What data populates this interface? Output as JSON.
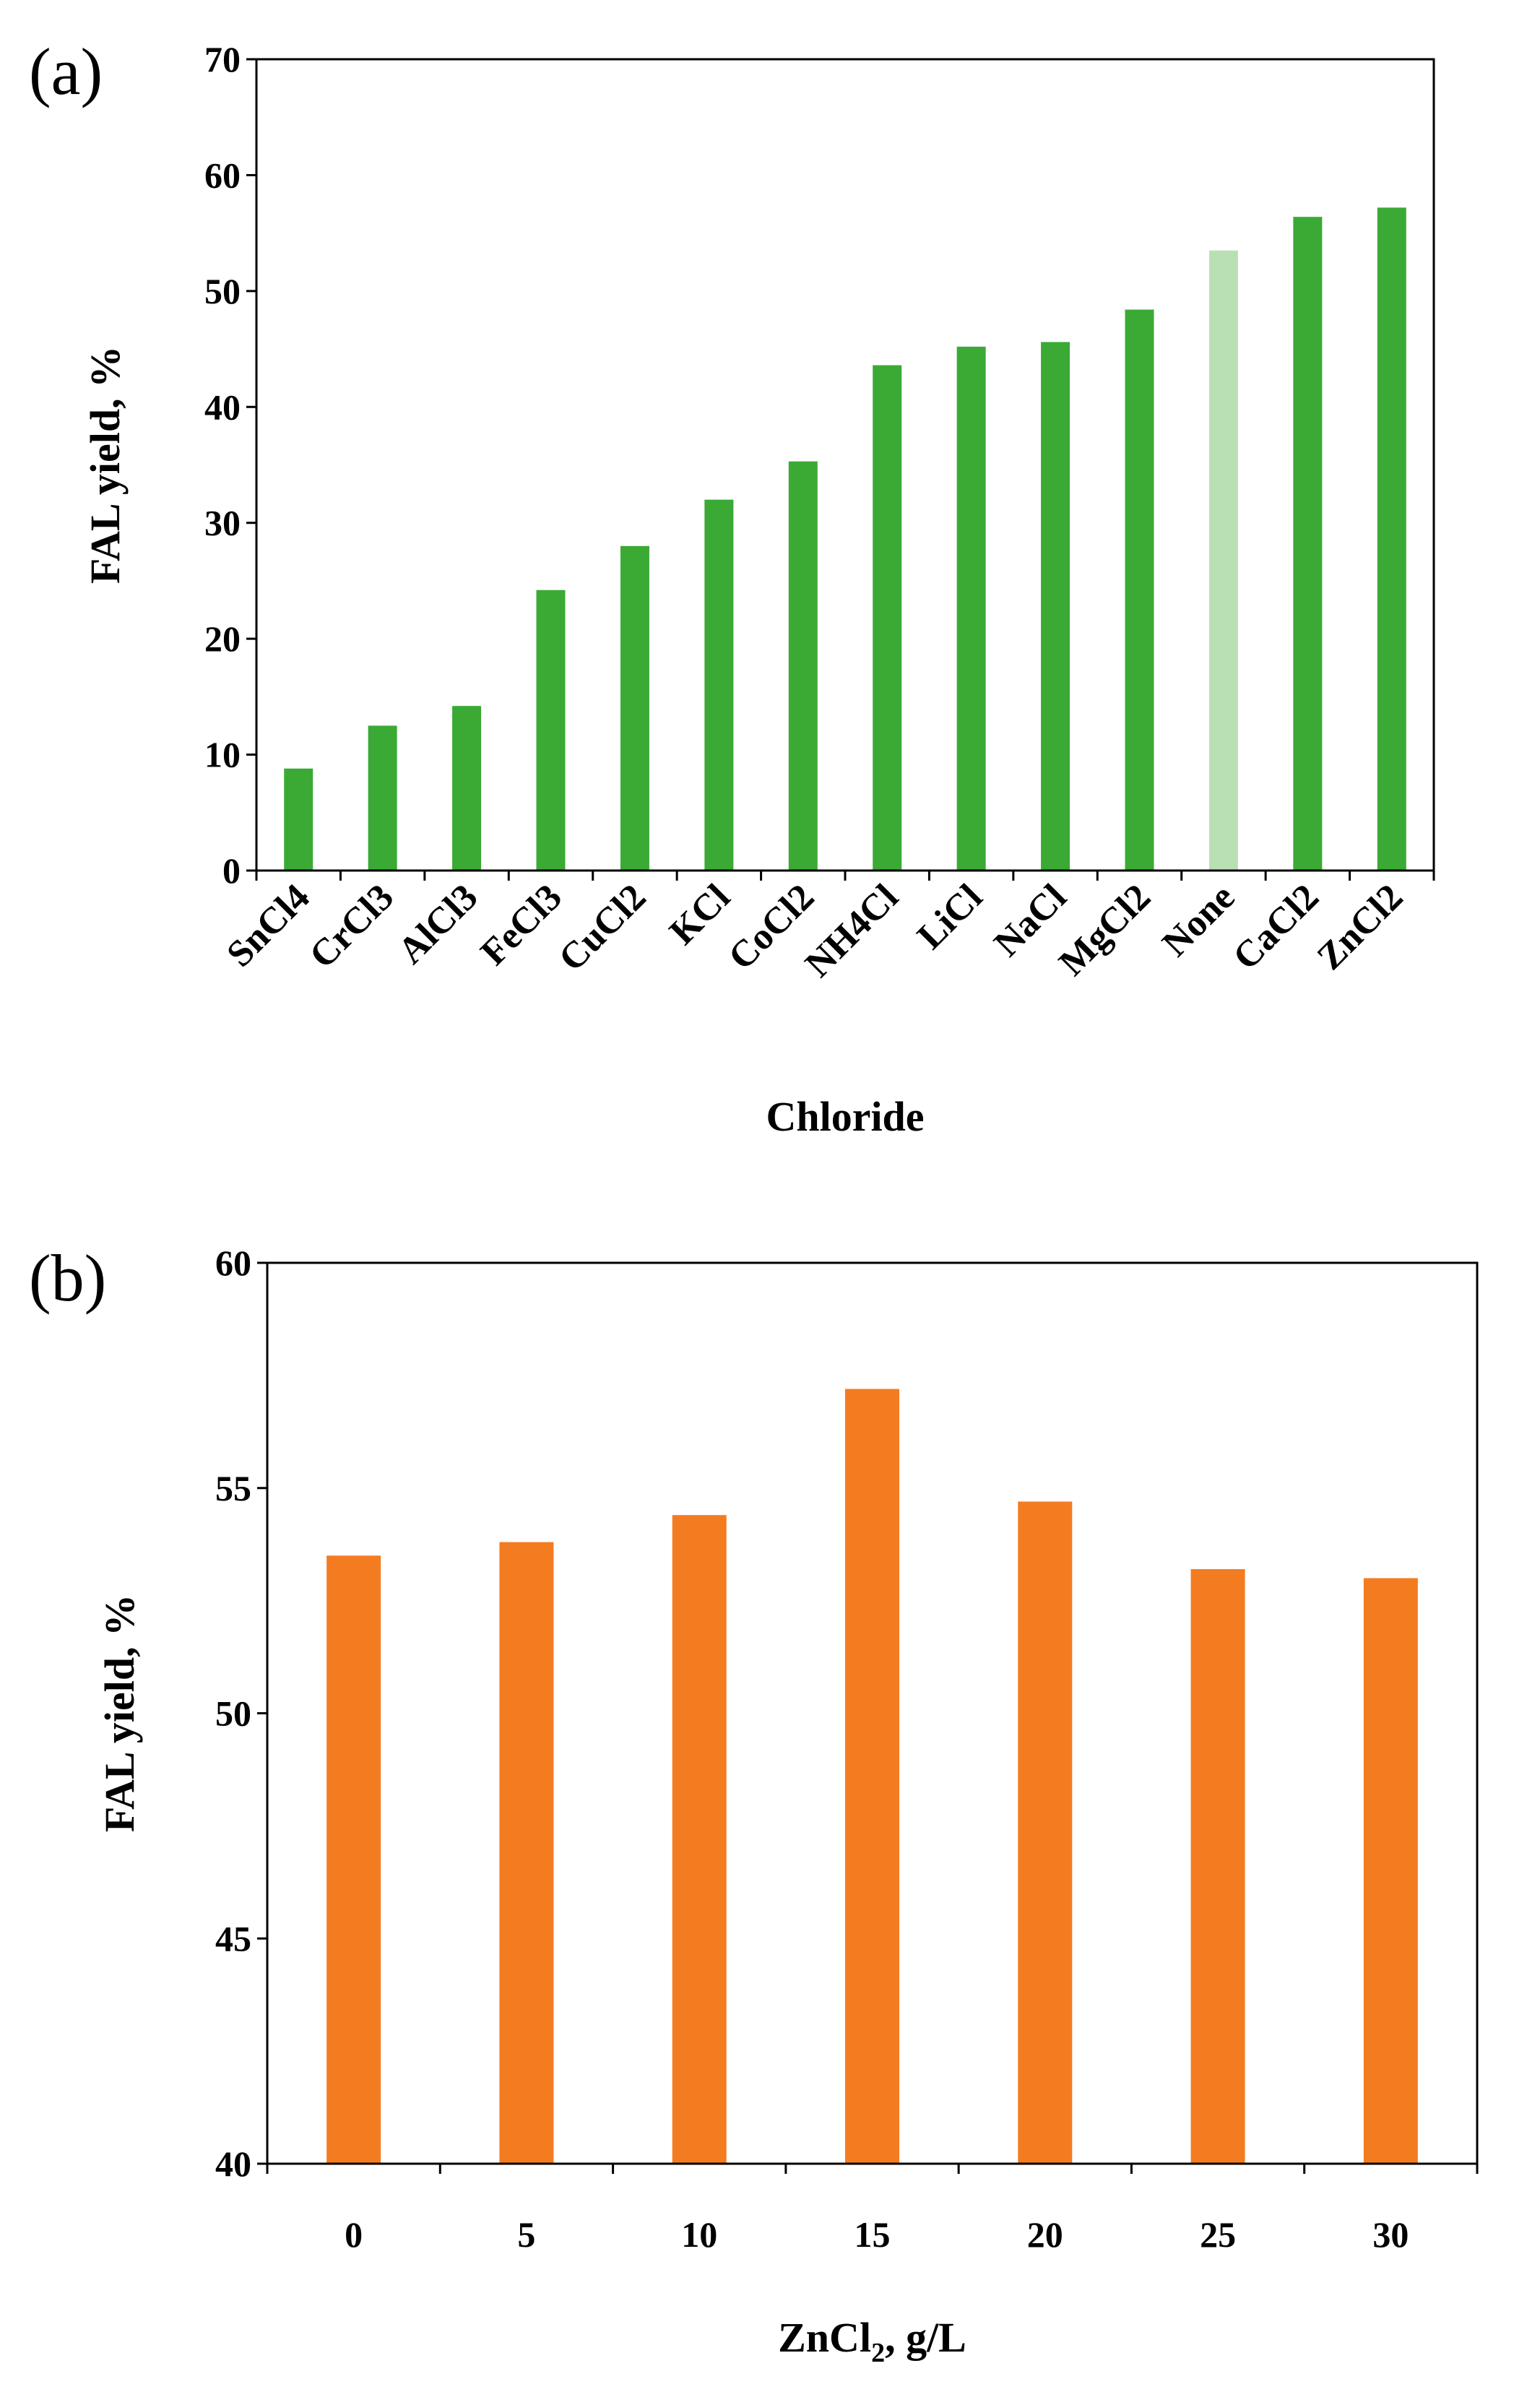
{
  "chart_data": [
    {
      "type": "bar",
      "panel_label": "(a)",
      "title": "",
      "xlabel": "Chloride",
      "ylabel": "FAL yield, %",
      "ylim": [
        0,
        70
      ],
      "yticks": [
        0,
        10,
        20,
        30,
        40,
        50,
        60,
        70
      ],
      "grid": false,
      "categories": [
        "SnCl4",
        "CrCl3",
        "AlCl3",
        "FeCl3",
        "CuCl2",
        "KCl",
        "CoCl2",
        "NH4Cl",
        "LiCl",
        "NaCl",
        "MgCl2",
        "None",
        "CaCl2",
        "ZnCl2"
      ],
      "values": [
        8.8,
        12.5,
        14.2,
        24.2,
        28.0,
        32.0,
        35.3,
        43.6,
        45.2,
        45.6,
        48.4,
        53.5,
        56.4,
        57.2
      ],
      "bar_color": "#3aaa35",
      "highlight_color": "#b9e0b4",
      "highlight_category": "None"
    },
    {
      "type": "bar",
      "panel_label": "(b)",
      "title": "",
      "xlabel_main": "ZnCl",
      "xlabel_sub": "2",
      "xlabel_tail": ", g/L",
      "ylabel": "FAL yield, %",
      "ylim": [
        40,
        60
      ],
      "yticks": [
        40,
        45,
        50,
        55,
        60
      ],
      "grid": false,
      "categories": [
        "0",
        "5",
        "10",
        "15",
        "20",
        "25",
        "30"
      ],
      "values": [
        53.5,
        53.8,
        54.4,
        57.2,
        54.7,
        53.2,
        53.0
      ],
      "bar_color": "#f47c20"
    }
  ]
}
